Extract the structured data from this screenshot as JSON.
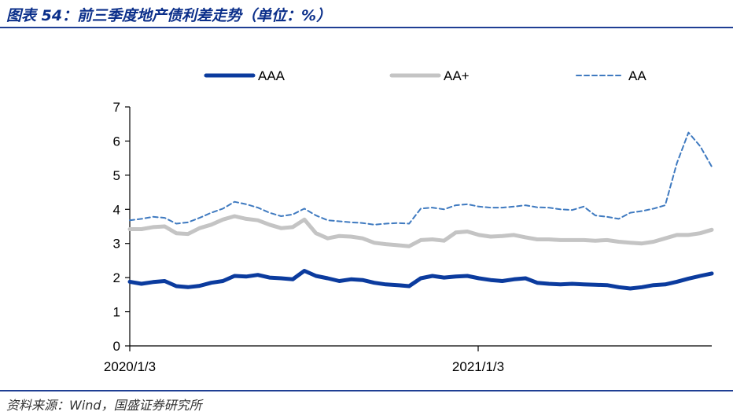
{
  "figure": {
    "title": "图表 54：前三季度地产债利差走势（单位：%）",
    "source": "资料来源：Wind，国盛证券研究所"
  },
  "chart_data": {
    "type": "line",
    "title": "",
    "xlabel": "",
    "ylabel": "",
    "x_ticks": [
      "2020/1/3",
      "2021/1/3"
    ],
    "x_range": [
      0,
      100
    ],
    "ylim": [
      0,
      7
    ],
    "y_ticks": [
      0,
      1,
      2,
      3,
      4,
      5,
      6,
      7
    ],
    "grid": false,
    "legend_position": "top",
    "x": [
      0,
      2,
      4,
      6,
      8,
      10,
      12,
      14,
      16,
      18,
      20,
      22,
      24,
      26,
      28,
      30,
      32,
      34,
      36,
      38,
      40,
      42,
      44,
      46,
      48,
      50,
      52,
      54,
      56,
      58,
      60,
      62,
      64,
      66,
      68,
      70,
      72,
      74,
      76,
      78,
      80,
      82,
      84,
      86,
      88,
      90,
      92,
      94,
      96,
      98,
      100
    ],
    "series": [
      {
        "name": "AAA",
        "color": "#0b3b9e",
        "style": "solid-thick",
        "values": [
          1.88,
          1.82,
          1.87,
          1.9,
          1.75,
          1.72,
          1.76,
          1.85,
          1.9,
          2.05,
          2.03,
          2.08,
          2.0,
          1.98,
          1.95,
          2.2,
          2.05,
          1.98,
          1.9,
          1.95,
          1.93,
          1.85,
          1.8,
          1.78,
          1.75,
          1.98,
          2.05,
          2.0,
          2.03,
          2.05,
          1.98,
          1.93,
          1.9,
          1.95,
          1.98,
          1.85,
          1.82,
          1.8,
          1.82,
          1.8,
          1.79,
          1.78,
          1.72,
          1.68,
          1.72,
          1.78,
          1.8,
          1.88,
          1.97,
          2.05,
          2.12
        ]
      },
      {
        "name": "AA+",
        "color": "#c4c4c4",
        "style": "solid-thick",
        "values": [
          3.42,
          3.42,
          3.48,
          3.5,
          3.3,
          3.28,
          3.45,
          3.55,
          3.7,
          3.8,
          3.72,
          3.68,
          3.55,
          3.45,
          3.48,
          3.7,
          3.3,
          3.15,
          3.22,
          3.2,
          3.15,
          3.02,
          2.98,
          2.95,
          2.92,
          3.1,
          3.12,
          3.08,
          3.32,
          3.35,
          3.25,
          3.2,
          3.22,
          3.25,
          3.18,
          3.12,
          3.12,
          3.1,
          3.1,
          3.1,
          3.08,
          3.1,
          3.05,
          3.02,
          3.0,
          3.05,
          3.15,
          3.25,
          3.25,
          3.3,
          3.4
        ]
      },
      {
        "name": "AA",
        "color": "#3f7ac0",
        "style": "dashed",
        "values": [
          3.68,
          3.72,
          3.78,
          3.75,
          3.58,
          3.62,
          3.75,
          3.9,
          4.02,
          4.22,
          4.15,
          4.05,
          3.9,
          3.8,
          3.85,
          4.02,
          3.82,
          3.68,
          3.65,
          3.62,
          3.6,
          3.55,
          3.58,
          3.6,
          3.58,
          4.02,
          4.05,
          4.0,
          4.12,
          4.15,
          4.08,
          4.05,
          4.05,
          4.08,
          4.12,
          4.06,
          4.05,
          4.0,
          3.98,
          4.08,
          3.82,
          3.78,
          3.72,
          3.9,
          3.95,
          4.02,
          4.12,
          5.35,
          6.25,
          5.85,
          5.25
        ]
      }
    ]
  }
}
